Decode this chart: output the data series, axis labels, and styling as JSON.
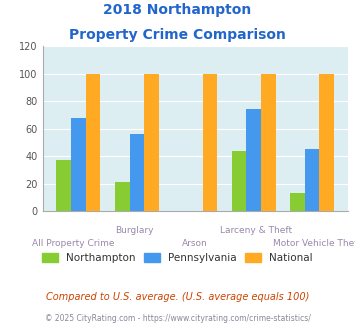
{
  "title_line1": "2018 Northampton",
  "title_line2": "Property Crime Comparison",
  "categories": [
    "All Property Crime",
    "Burglary",
    "Arson",
    "Larceny & Theft",
    "Motor Vehicle Theft"
  ],
  "northampton": [
    37,
    21,
    0,
    44,
    13
  ],
  "pennsylvania": [
    68,
    56,
    0,
    74,
    45
  ],
  "national": [
    100,
    100,
    100,
    100,
    100
  ],
  "color_northampton": "#88cc33",
  "color_pennsylvania": "#4499ee",
  "color_national": "#ffaa22",
  "ylim": [
    0,
    120
  ],
  "yticks": [
    0,
    20,
    40,
    60,
    80,
    100,
    120
  ],
  "plot_bg": "#ddeef3",
  "title_color": "#2266cc",
  "xlabel_color": "#9988aa",
  "legend_labels": [
    "Northampton",
    "Pennsylvania",
    "National"
  ],
  "footer_text": "Compared to U.S. average. (U.S. average equals 100)",
  "copyright_text": "© 2025 CityRating.com - https://www.cityrating.com/crime-statistics/",
  "footer_color": "#cc4400",
  "copyright_color": "#888899",
  "upper_label_indices": [
    1,
    3
  ],
  "upper_label_names": [
    "Burglary",
    "Larceny & Theft"
  ],
  "lower_label_indices": [
    0,
    2,
    4
  ],
  "lower_label_names": [
    "All Property Crime",
    "Arson",
    "Motor Vehicle Theft"
  ]
}
